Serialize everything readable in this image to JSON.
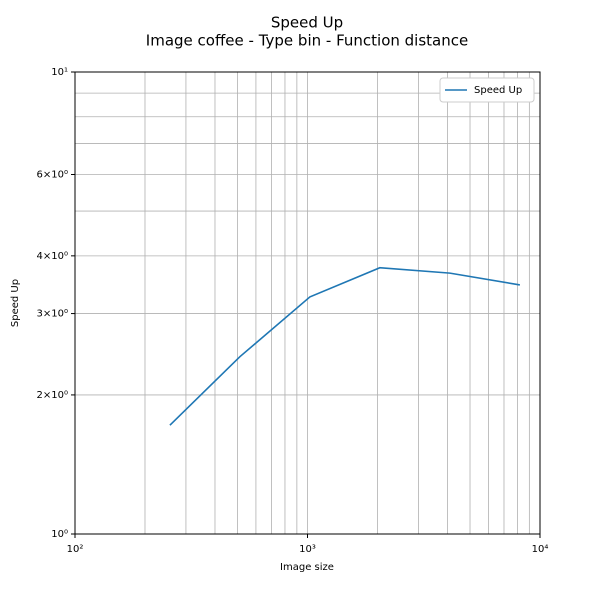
{
  "chart_data": {
    "type": "line",
    "title": "Speed Up",
    "subtitle": "Image coffee - Type bin - Function distance",
    "x_label": "Image size",
    "y_label": "Speed Up",
    "x": [
      256,
      512,
      1024,
      2048,
      4096,
      8192
    ],
    "series": [
      {
        "name": "Speed Up",
        "color": "#1f77b4",
        "values": [
          1.72,
          2.42,
          3.26,
          3.77,
          3.67,
          3.46
        ]
      }
    ],
    "xscale": "log",
    "yscale": "log",
    "xlim": [
      100,
      10000
    ],
    "ylim": [
      1,
      10
    ],
    "xticks": [
      {
        "value": 100,
        "label": "10²"
      },
      {
        "value": 1000,
        "label": "10³"
      },
      {
        "value": 10000,
        "label": "10⁴"
      }
    ],
    "xminor": [
      200,
      300,
      400,
      500,
      600,
      700,
      800,
      900,
      2000,
      3000,
      4000,
      5000,
      6000,
      7000,
      8000,
      9000
    ],
    "yticks": [
      {
        "value": 1,
        "label": "10⁰"
      },
      {
        "value": 2,
        "label": "2×10⁰"
      },
      {
        "value": 3,
        "label": "3×10⁰"
      },
      {
        "value": 4,
        "label": "4×10⁰"
      },
      {
        "value": 6,
        "label": "6×10⁰"
      },
      {
        "value": 10,
        "label": "10¹"
      }
    ],
    "yminor": [
      5,
      7,
      8,
      9
    ],
    "grid": true,
    "legend": "upper right"
  }
}
